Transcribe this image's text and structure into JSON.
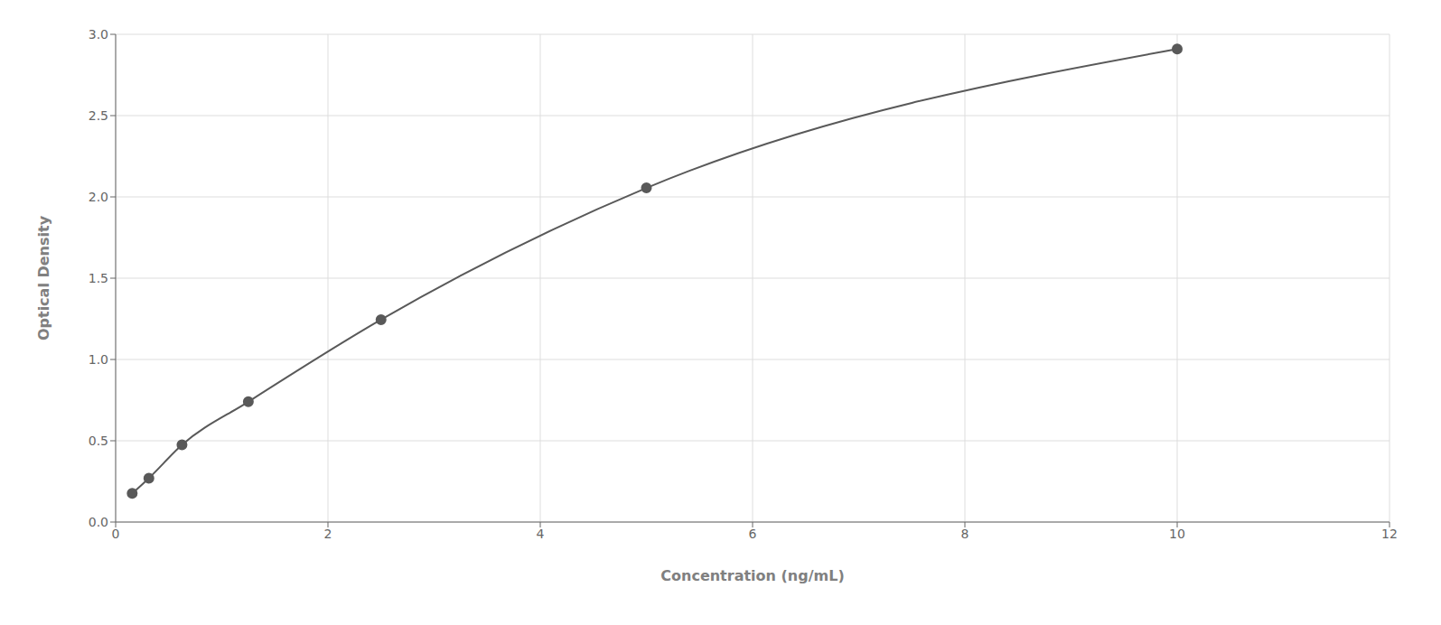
{
  "chart_data": {
    "type": "scatter",
    "x_label": "Concentration (ng/mL)",
    "y_label": "Optical Density",
    "x": [
      0.156,
      0.313,
      0.625,
      1.25,
      2.5,
      5.0,
      10.0
    ],
    "values": [
      0.176,
      0.27,
      0.475,
      0.74,
      1.245,
      2.055,
      2.91
    ],
    "color": "#595959",
    "marker": "o",
    "line_style": "solid",
    "xlim": [
      0,
      12
    ],
    "ylim": [
      0,
      3
    ],
    "xticks": [
      0,
      2,
      4,
      6,
      8,
      10,
      12
    ],
    "yticks": [
      {
        "value": 0,
        "label": "0.0"
      },
      0.5,
      {
        "value": 1.0,
        "label": "1.0"
      },
      1.5,
      {
        "value": 2.0,
        "label": "2.0"
      },
      2.5,
      {
        "value": 3.0,
        "label": "3.0"
      }
    ],
    "grid": true
  }
}
